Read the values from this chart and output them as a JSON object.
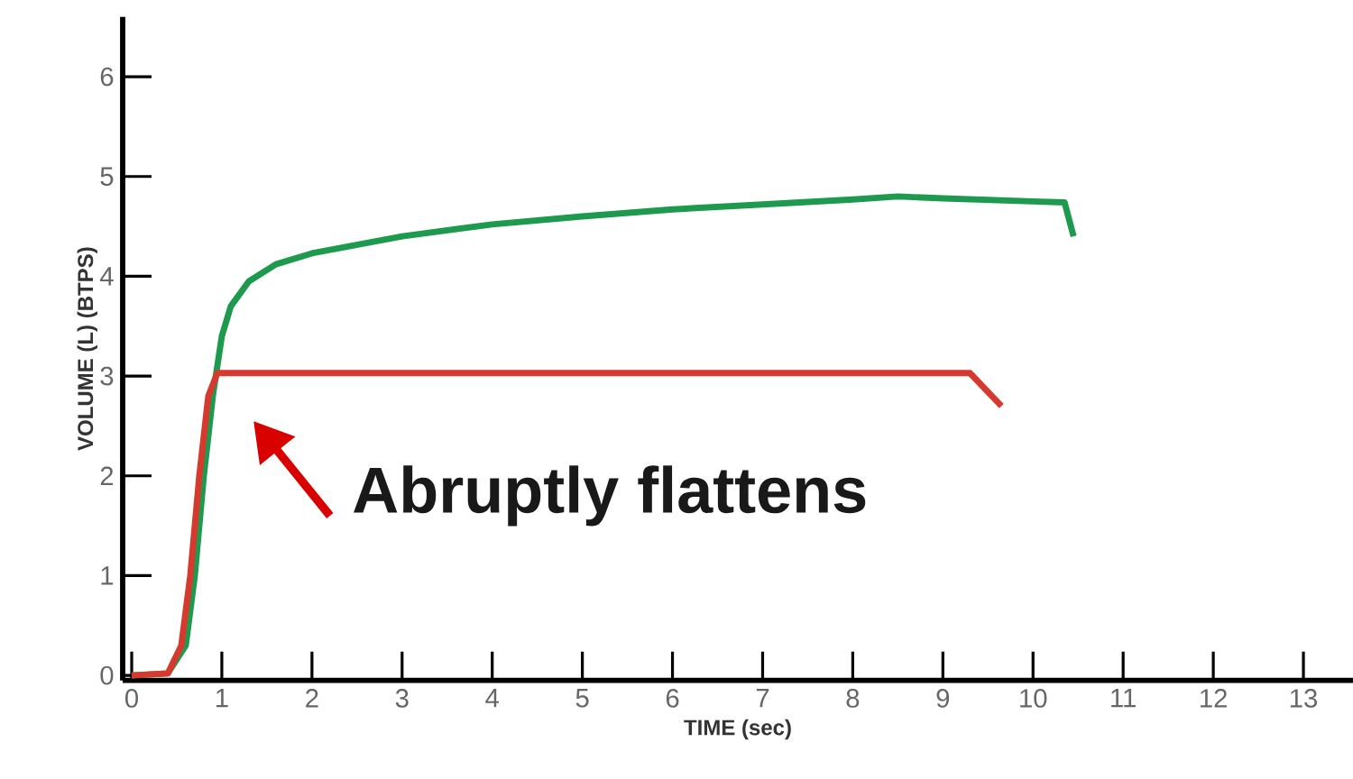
{
  "chart_data": {
    "type": "line",
    "xlabel": "TIME (sec)",
    "ylabel": "VOLUME (L) (BTPS)",
    "xlim": [
      -0.1,
      13.55
    ],
    "ylim": [
      -0.05,
      6.6
    ],
    "xticks": [
      0,
      1,
      2,
      3,
      4,
      5,
      6,
      7,
      8,
      9,
      10,
      11,
      12,
      13
    ],
    "yticks": [
      0,
      1,
      2,
      3,
      4,
      5,
      6
    ],
    "marker": "none",
    "line_style": "solid",
    "annotations": [
      "Abruptly flattens"
    ],
    "series": [
      {
        "color": "#1e9a4e",
        "x": [
          0,
          0.4,
          0.6,
          0.7,
          0.8,
          0.9,
          1,
          1.1,
          1.3,
          1.6,
          2,
          3,
          4,
          5,
          6,
          7,
          8,
          8.5,
          9,
          10,
          10.35,
          10.45
        ],
        "values": [
          0,
          0.02,
          0.3,
          1,
          2,
          2.8,
          3.4,
          3.7,
          3.95,
          4.12,
          4.23,
          4.4,
          4.52,
          4.6,
          4.67,
          4.72,
          4.77,
          4.8,
          4.78,
          4.75,
          4.74,
          4.4
        ]
      },
      {
        "color": "#d63a2f",
        "x": [
          0,
          0.4,
          0.55,
          0.65,
          0.75,
          0.85,
          0.95,
          1,
          2,
          5,
          9.3,
          9.65
        ],
        "values": [
          0,
          0.02,
          0.3,
          1,
          2,
          2.8,
          3.03,
          3.03,
          3.03,
          3.03,
          3.03,
          2.7
        ]
      }
    ]
  }
}
